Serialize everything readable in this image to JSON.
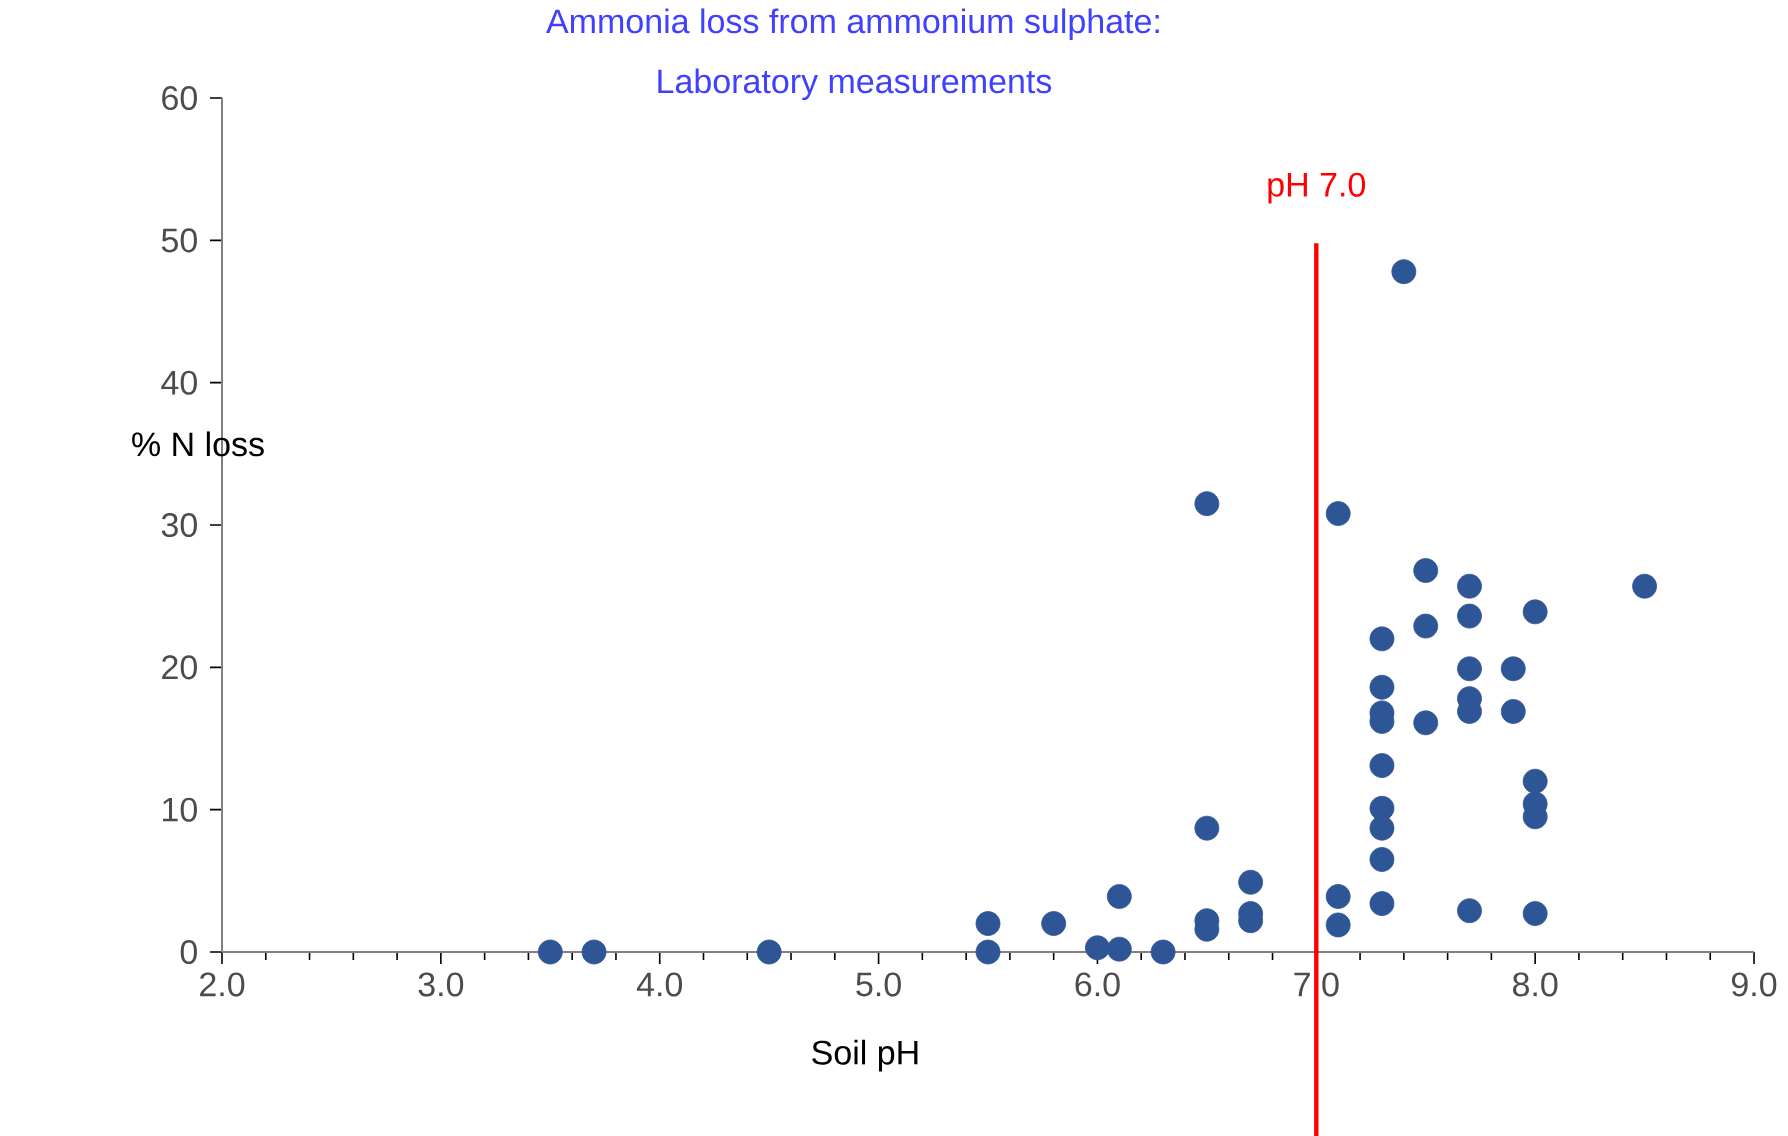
{
  "chart_data": {
    "type": "scatter",
    "title": "Ammonia loss from ammonium sulphate:\nLaboratory measurements",
    "xlabel": "Soil pH",
    "ylabel": "% N loss",
    "xlim": [
      2.0,
      9.0
    ],
    "xticks": [
      {
        "value": 2,
        "label": "2.0"
      },
      {
        "value": 3,
        "label": "3.0"
      },
      {
        "value": 4,
        "label": "4.0"
      },
      {
        "value": 5,
        "label": "5.0"
      },
      {
        "value": 6,
        "label": "6.0"
      },
      {
        "value": 7,
        "label": "7.0"
      },
      {
        "value": 8,
        "label": "8.0"
      },
      {
        "value": 9,
        "label": "9.0"
      }
    ],
    "ylim": [
      0,
      60
    ],
    "yticks": [
      0,
      10,
      20,
      30,
      40,
      50,
      60
    ],
    "grid": false,
    "marker": "circle",
    "ref_lines": [
      {
        "axis": "x",
        "value": 7.0,
        "label": "pH 7.0",
        "color": "#ff0000"
      }
    ],
    "series": [
      {
        "color": "#2e5596",
        "x": [
          3.5,
          3.7,
          4.5,
          5.5,
          5.5,
          5.8,
          6.0,
          6.1,
          6.1,
          6.3,
          6.5,
          6.5,
          6.5,
          6.5,
          6.7,
          6.7,
          6.7,
          7.1,
          7.1,
          7.1,
          7.4,
          7.5,
          7.5,
          7.5,
          7.3,
          7.3,
          7.3,
          7.3,
          7.3,
          7.3,
          7.3,
          7.3,
          7.3,
          7.7,
          7.7,
          7.7,
          7.7,
          7.7,
          7.7,
          7.9,
          7.9,
          8.0,
          8.0,
          8.0,
          8.0,
          8.0,
          8.5
        ],
        "values": [
          0,
          0,
          0,
          0,
          2.0,
          2.0,
          0.3,
          3.9,
          0.2,
          0,
          1.6,
          2.2,
          8.7,
          31.5,
          2.2,
          2.7,
          4.9,
          30.8,
          3.9,
          1.9,
          47.8,
          26.8,
          22.9,
          16.1,
          22.0,
          18.6,
          16.8,
          16.2,
          13.1,
          10.1,
          8.7,
          6.5,
          3.4,
          25.7,
          23.6,
          19.9,
          17.8,
          16.9,
          2.9,
          19.9,
          16.9,
          23.9,
          12.0,
          10.4,
          9.5,
          2.7,
          25.7
        ]
      }
    ]
  }
}
